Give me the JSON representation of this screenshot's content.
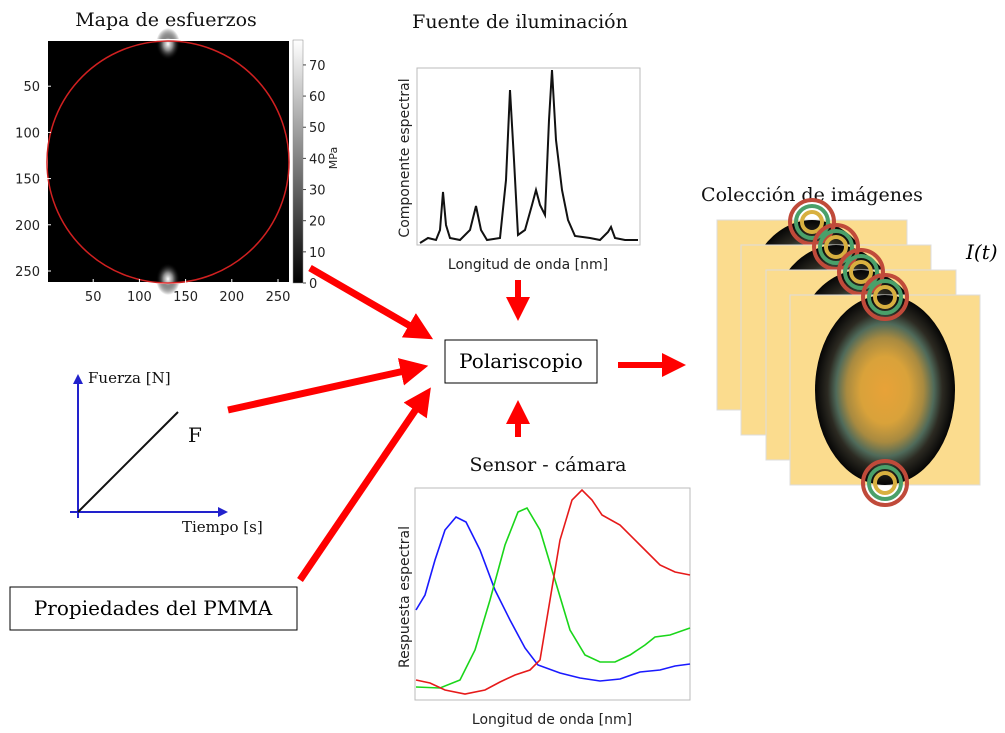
{
  "stress_map": {
    "title": "Mapa de esfuerzos",
    "yticks": [
      50,
      100,
      150,
      200,
      250
    ],
    "xticks": [
      50,
      100,
      150,
      200,
      250
    ],
    "colorbar_ticks": [
      0,
      10,
      20,
      30,
      40,
      50,
      60,
      70
    ],
    "colorbar_label": "MPa"
  },
  "illumination": {
    "title": "Fuente de iluminación",
    "y_label": "Componente espectral",
    "x_label": "Longitud de onda [nm]"
  },
  "polariscope": {
    "label": "Polariscopio"
  },
  "sensor": {
    "title": "Sensor - cámara",
    "y_label": "Respuesta espectral",
    "x_label": "Longitud de onda [nm]"
  },
  "images": {
    "title": "Colección de imágenes",
    "label": "I(t)"
  },
  "force_plot": {
    "y_label": "Fuerza [N]",
    "x_label": "Tiempo [s]",
    "line_label": "F"
  },
  "material": {
    "label": "Propiedades del PMMA"
  }
}
